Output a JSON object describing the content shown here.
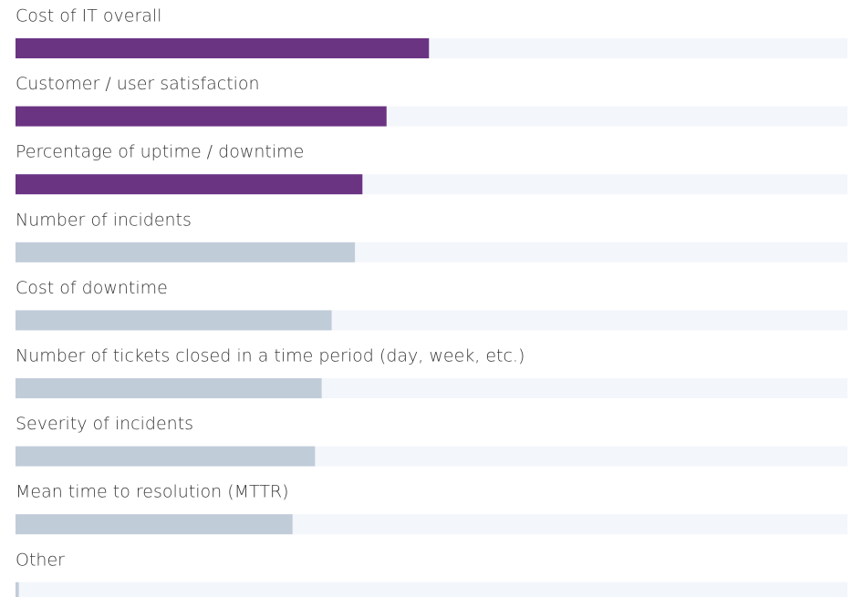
{
  "chart_data": {
    "type": "bar",
    "categories": [
      "Cost of IT overall",
      "Customer / user satisfaction",
      "Percentage of uptime / downtime",
      "Number of incidents",
      "Cost of downtime",
      "Number of tickets closed in a time period (day, week, etc.)",
      "Severity of incidents",
      "Mean time to resolution (MTTR)",
      "Other"
    ],
    "values": [
      49.7,
      44.6,
      41.7,
      40.8,
      38,
      36.8,
      36,
      33.3,
      0.4
    ],
    "colors": [
      "#6b3483",
      "#6b3483",
      "#6b3483",
      "#c1ccd9",
      "#c1ccd9",
      "#c1ccd9",
      "#c1ccd9",
      "#c1ccd9",
      "#c1ccd9"
    ],
    "track_color": "#f3f6fa",
    "xlim": [
      0,
      100
    ]
  }
}
